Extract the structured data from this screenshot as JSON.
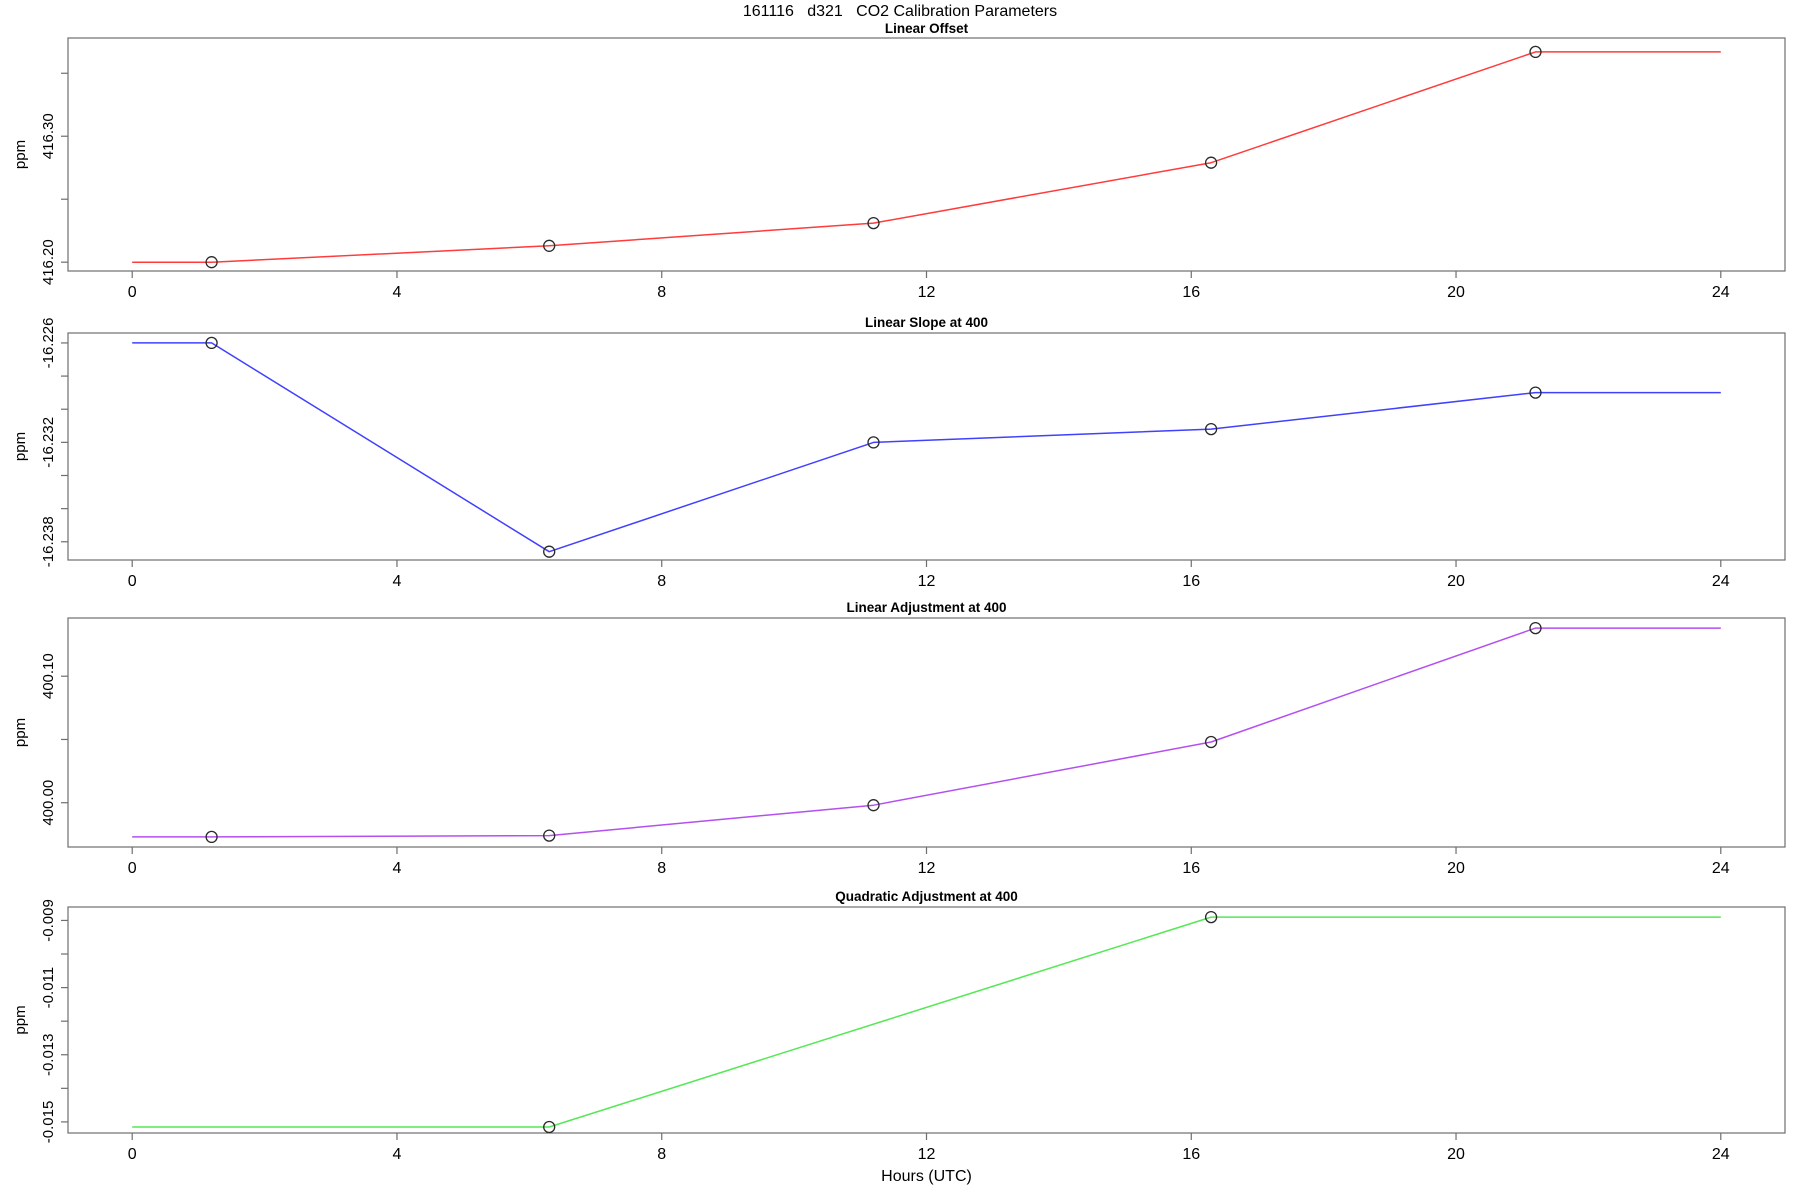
{
  "title": "161116   d321   CO2 Calibration Parameters",
  "xlabel": "Hours (UTC)",
  "chart_data": [
    {
      "type": "line",
      "title": "Linear Offset",
      "ylabel": "ppm",
      "color": "#ff3b3b",
      "x": [
        0,
        1.2,
        6.3,
        11.2,
        16.3,
        21.2,
        24
      ],
      "y": [
        416.2,
        416.2,
        416.213,
        416.231,
        416.279,
        416.367,
        416.367
      ],
      "marker_x": [
        1.2,
        6.3,
        11.2,
        16.3,
        21.2
      ],
      "xlim": [
        -0.97,
        24.97
      ],
      "ylim": [
        416.193,
        416.378
      ],
      "yticks": {
        "values": [
          416.2,
          416.25,
          416.3,
          416.35
        ],
        "labels": [
          "416.20",
          "",
          "416.30",
          ""
        ]
      },
      "xticks": {
        "values": [
          0,
          4,
          8,
          12,
          16,
          20,
          24
        ],
        "labels": [
          "0",
          "4",
          "8",
          "12",
          "16",
          "20",
          "24"
        ]
      },
      "grid": "off",
      "legend": "none"
    },
    {
      "type": "line",
      "title": "Linear Slope at 400",
      "ylabel": "ppm",
      "color": "#4040ff",
      "x": [
        0,
        1.2,
        6.3,
        11.2,
        16.3,
        21.2,
        24
      ],
      "y": [
        -16.226,
        -16.226,
        -16.2386,
        -16.232,
        -16.2312,
        -16.229,
        -16.229
      ],
      "marker_x": [
        1.2,
        6.3,
        11.2,
        16.3,
        21.2
      ],
      "xlim": [
        -0.97,
        24.97
      ],
      "ylim": [
        -16.2391,
        -16.2254
      ],
      "yticks": {
        "values": [
          -16.226,
          -16.228,
          -16.23,
          -16.232,
          -16.234,
          -16.236,
          -16.238
        ],
        "labels": [
          "-16.226",
          "",
          "",
          "-16.232",
          "",
          "",
          "-16.238"
        ]
      },
      "xticks": {
        "values": [
          0,
          4,
          8,
          12,
          16,
          20,
          24
        ],
        "labels": [
          "0",
          "4",
          "8",
          "12",
          "16",
          "20",
          "24"
        ]
      },
      "grid": "off",
      "legend": "none"
    },
    {
      "type": "line",
      "title": "Linear Adjustment at 400",
      "ylabel": "ppm",
      "color": "#b44ff0",
      "x": [
        0,
        1.2,
        6.3,
        11.2,
        16.3,
        21.2,
        24
      ],
      "y": [
        399.973,
        399.973,
        399.974,
        399.998,
        400.048,
        400.138,
        400.138
      ],
      "marker_x": [
        1.2,
        6.3,
        11.2,
        16.3,
        21.2
      ],
      "xlim": [
        -0.97,
        24.97
      ],
      "ylim": [
        399.965,
        400.146
      ],
      "yticks": {
        "values": [
          400.0,
          400.05,
          400.1
        ],
        "labels": [
          "400.00",
          "",
          "400.10"
        ]
      },
      "xticks": {
        "values": [
          0,
          4,
          8,
          12,
          16,
          20,
          24
        ],
        "labels": [
          "0",
          "4",
          "8",
          "12",
          "16",
          "20",
          "24"
        ]
      },
      "grid": "off",
      "legend": "none"
    },
    {
      "type": "line",
      "title": "Quadratic Adjustment at 400",
      "ylabel": "ppm",
      "color": "#55e855",
      "x": [
        0,
        6.3,
        16.3,
        24
      ],
      "y": [
        -0.01515,
        -0.01515,
        -0.0089,
        -0.0089
      ],
      "marker_x": [
        6.3,
        16.3
      ],
      "xlim": [
        -0.97,
        24.97
      ],
      "ylim": [
        -0.01533,
        -0.0086
      ],
      "yticks": {
        "values": [
          -0.009,
          -0.01,
          -0.011,
          -0.012,
          -0.013,
          -0.014,
          -0.015
        ],
        "labels": [
          "-0.009",
          "",
          "-0.011",
          "",
          "-0.013",
          "",
          "-0.015"
        ]
      },
      "xticks": {
        "values": [
          0,
          4,
          8,
          12,
          16,
          20,
          24
        ],
        "labels": [
          "0",
          "4",
          "8",
          "12",
          "16",
          "20",
          "24"
        ]
      },
      "grid": "off",
      "legend": "none"
    }
  ],
  "style": {
    "box_color": "#6e6e6e",
    "tick_color": "#6e6e6e",
    "text_color": "#000000",
    "marker_color": "#2a2a2a"
  }
}
